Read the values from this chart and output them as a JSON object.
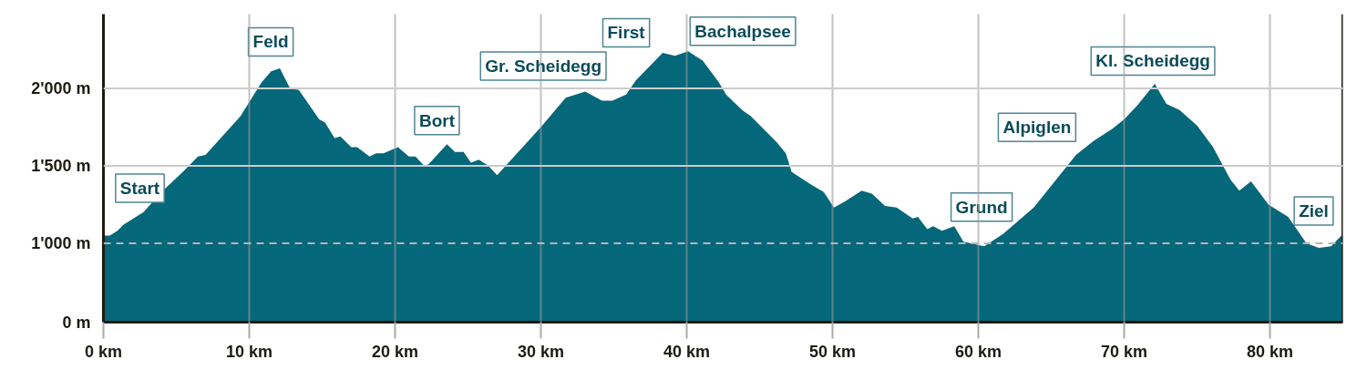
{
  "chart_data": {
    "type": "area",
    "x": [
      0,
      0.44,
      0.96,
      1.38,
      2.73,
      4.19,
      5.44,
      6.48,
      7,
      9.4,
      10.85,
      11.5,
      12.1,
      12.8,
      13.4,
      14.8,
      15.2,
      15.85,
      16.25,
      17,
      17.4,
      18.25,
      18.7,
      19.2,
      20.2,
      20.95,
      21.4,
      22,
      22.3,
      23.56,
      24.1,
      24.7,
      25.2,
      25.75,
      26.4,
      27,
      30,
      31.7,
      33.04,
      34.2,
      34.9,
      35.85,
      36.5,
      38.35,
      39.2,
      40.1,
      41.1,
      42.2,
      42.7,
      43.8,
      44.4,
      46.2,
      46.8,
      47.2,
      48.5,
      49.4,
      50.1,
      50.86,
      52,
      52.7,
      53.6,
      54.4,
      55.5,
      55.86,
      56.5,
      56.9,
      57.5,
      58.35,
      58.98,
      60.4,
      61.7,
      63.8,
      66.7,
      67.9,
      69.2,
      70,
      70.9,
      72.1,
      72.9,
      73.8,
      75,
      76.1,
      77.3,
      77.9,
      78.7,
      79.9,
      81.25,
      82.5,
      83.35,
      84.2,
      84.9,
      85
    ],
    "series": [
      {
        "color": "#05677a",
        "values": [
          1050,
          1050,
          1080,
          1120,
          1200,
          1350,
          1460,
          1560,
          1570,
          1820,
          2040,
          2110,
          2130,
          2000,
          1990,
          1800,
          1780,
          1680,
          1690,
          1620,
          1620,
          1560,
          1580,
          1580,
          1620,
          1560,
          1560,
          1500,
          1510,
          1640,
          1590,
          1590,
          1520,
          1540,
          1500,
          1440,
          1750,
          1940,
          1980,
          1920,
          1920,
          1960,
          2050,
          2230,
          2210,
          2240,
          2180,
          2040,
          1960,
          1860,
          1820,
          1650,
          1580,
          1460,
          1380,
          1330,
          1230,
          1270,
          1340,
          1320,
          1240,
          1230,
          1160,
          1170,
          1090,
          1110,
          1080,
          1110,
          1010,
          980,
          1060,
          1230,
          1570,
          1660,
          1740,
          1800,
          1890,
          2030,
          1900,
          1860,
          1760,
          1620,
          1410,
          1340,
          1400,
          1250,
          1170,
          1000,
          970,
          980,
          1050,
          1050
        ]
      }
    ],
    "xlim": [
      0,
      85
    ],
    "xticks": [
      {
        "value": 0,
        "label": "0 km"
      },
      {
        "value": 10,
        "label": "10 km"
      },
      {
        "value": 20,
        "label": "20 km"
      },
      {
        "value": 30,
        "label": "30 km"
      },
      {
        "value": 40,
        "label": "40 km"
      },
      {
        "value": 50,
        "label": "50 km"
      },
      {
        "value": 60,
        "label": "60 km"
      },
      {
        "value": 70,
        "label": "70 km"
      },
      {
        "value": 80,
        "label": "80 km"
      }
    ],
    "ylim": [
      490,
      2480
    ],
    "yticks": [
      {
        "value": 490,
        "label": "0 m"
      },
      {
        "value": 1000,
        "label": "1'000 m"
      },
      {
        "value": 1500,
        "label": "1'500 m"
      },
      {
        "value": 2000,
        "label": "2'000 m"
      }
    ],
    "grid": "x",
    "ref_lines": [
      {
        "axis": "y",
        "value": 1000,
        "color": "#b5b5b5",
        "line_style": "dashed"
      },
      {
        "axis": "y",
        "value": 1500,
        "color": "#cccccc",
        "line_style": "solid"
      },
      {
        "axis": "y",
        "value": 2000,
        "color": "#cccccc",
        "line_style": "solid"
      }
    ],
    "annotations": [
      {
        "text": "Start",
        "x": 0,
        "y": 1050
      },
      {
        "text": "Feld",
        "x": 12.1,
        "y": 2130
      },
      {
        "text": "Bort",
        "x": 23.56,
        "y": 1640
      },
      {
        "text": "Gr. Scheidegg",
        "x": 33.04,
        "y": 1980
      },
      {
        "text": "First",
        "x": 38.35,
        "y": 2230
      },
      {
        "text": "Bachalpsee",
        "x": 40.1,
        "y": 2240
      },
      {
        "text": "Grund",
        "x": 58.35,
        "y": 1110
      },
      {
        "text": "Alpiglen",
        "x": 67.9,
        "y": 1660
      },
      {
        "text": "Kl. Scheidegg",
        "x": 72.1,
        "y": 2030
      },
      {
        "text": "Ziel",
        "x": 85,
        "y": 1050
      }
    ]
  }
}
